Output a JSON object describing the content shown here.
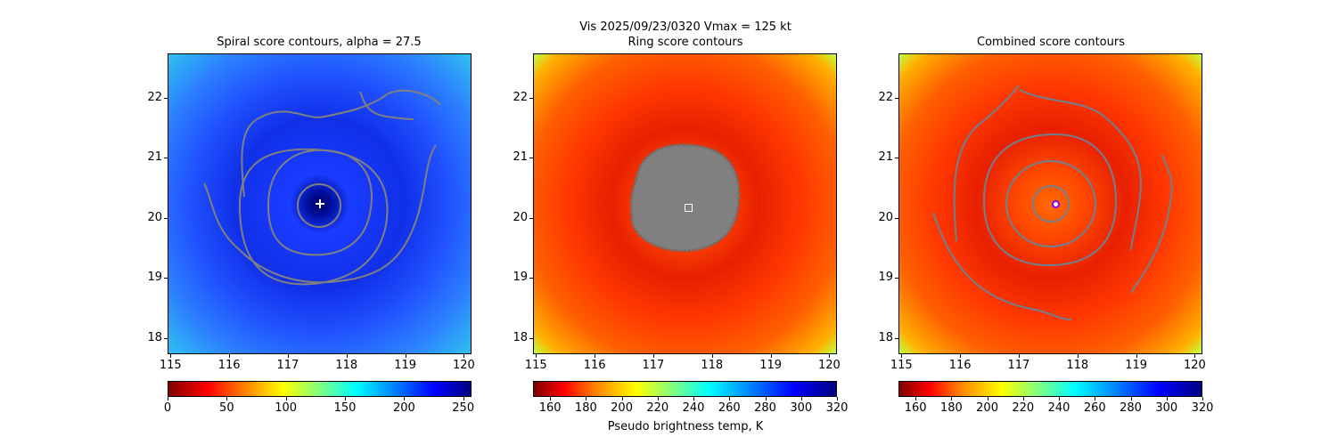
{
  "suptitle": "Vis  2025/09/23/0320    Vmax = 125 kt",
  "chart_data": [
    {
      "type": "heatmap",
      "title": "Spiral score contours, alpha = 27.5",
      "xlim": [
        114.95,
        120.13
      ],
      "ylim": [
        17.73,
        22.74
      ],
      "xticks": [
        115,
        116,
        117,
        118,
        119,
        120
      ],
      "yticks": [
        18,
        19,
        20,
        21,
        22
      ],
      "colormap": "jet_r",
      "colorbar": {
        "range": [
          0,
          257
        ],
        "ticks": [
          0,
          50,
          100,
          150,
          200,
          250
        ],
        "label": ""
      },
      "center_marker": {
        "lon": 117.55,
        "lat": 20.23,
        "symbol": "plus",
        "color": "#ffffff"
      },
      "contour_color": "#808080"
    },
    {
      "type": "heatmap",
      "title": "Ring score contours",
      "xlim": [
        114.95,
        120.13
      ],
      "ylim": [
        17.73,
        22.74
      ],
      "xticks": [
        115,
        116,
        117,
        118,
        119,
        120
      ],
      "yticks": [
        18,
        19,
        20,
        21,
        22
      ],
      "colormap": "jet_r",
      "colorbar": {
        "range": [
          150.5,
          320
        ],
        "ticks": [
          160,
          180,
          200,
          220,
          240,
          260,
          280,
          300,
          320
        ],
        "label": "Pseudo brightness temp, K"
      },
      "center_marker": {
        "lon": 117.6,
        "lat": 20.18,
        "symbol": "square",
        "color": "#ffffff"
      },
      "contour_color": "#808080"
    },
    {
      "type": "heatmap",
      "title": "Combined score contours",
      "xlim": [
        114.95,
        120.13
      ],
      "ylim": [
        17.73,
        22.74
      ],
      "xticks": [
        115,
        116,
        117,
        118,
        119,
        120
      ],
      "yticks": [
        18,
        19,
        20,
        21,
        22
      ],
      "colormap": "jet_r",
      "colorbar": {
        "range": [
          150.5,
          320
        ],
        "ticks": [
          160,
          180,
          200,
          220,
          240,
          260,
          280,
          300,
          320
        ],
        "label": ""
      },
      "center_marker": {
        "lon": 117.62,
        "lat": 20.23,
        "symbol": "circle",
        "color": "#8000ff"
      },
      "contour_color": "#708090"
    }
  ]
}
